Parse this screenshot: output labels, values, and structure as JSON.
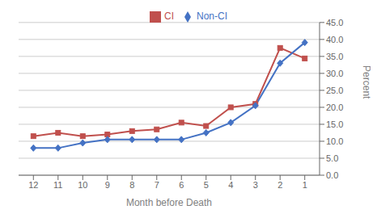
{
  "chart_data": {
    "type": "line",
    "x": [
      12,
      11,
      10,
      9,
      8,
      7,
      6,
      5,
      4,
      3,
      2,
      1
    ],
    "xlim": [
      12.6,
      0.4
    ],
    "xticks": [
      12,
      11,
      10,
      9,
      8,
      7,
      6,
      5,
      4,
      3,
      2,
      1
    ],
    "xlabel": "Month before Death",
    "ylabel": "Percent",
    "ylim": [
      0,
      45
    ],
    "yticks": [
      {
        "value": 0,
        "label": "0.0"
      },
      {
        "value": 5,
        "label": "5.0"
      },
      {
        "value": 10,
        "label": "10.0"
      },
      {
        "value": 15,
        "label": "15.0"
      },
      {
        "value": 20,
        "label": "20.0"
      },
      {
        "value": 25,
        "label": "25.0"
      },
      {
        "value": 30,
        "label": "30.0"
      },
      {
        "value": 35,
        "label": "35.0"
      },
      {
        "value": 40,
        "label": "40.0"
      },
      {
        "value": 45,
        "label": "45.0"
      }
    ],
    "grid": true,
    "legend": "top",
    "series": [
      {
        "name": "CI",
        "color": "#C0504D",
        "marker": "square",
        "values": [
          11.5,
          12.5,
          11.5,
          12.0,
          13.0,
          13.5,
          15.5,
          14.5,
          20.0,
          21.0,
          37.5,
          34.4
        ]
      },
      {
        "name": "Non-CI",
        "color": "#4472C4",
        "marker": "diamond",
        "values": [
          8.0,
          8.0,
          9.5,
          10.5,
          10.5,
          10.5,
          10.5,
          12.5,
          15.5,
          20.5,
          33.0,
          39.1
        ]
      }
    ]
  }
}
